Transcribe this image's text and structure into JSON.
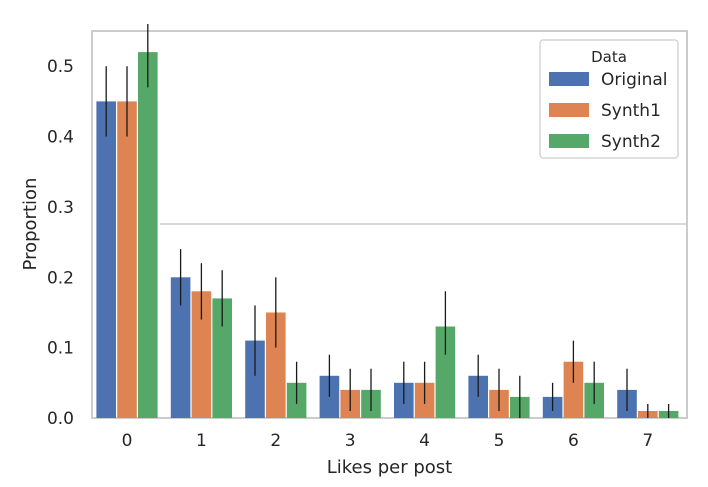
{
  "chart_data": {
    "type": "bar",
    "title": "",
    "xlabel": "Likes per post",
    "ylabel": "Proportion",
    "categories": [
      "0",
      "1",
      "2",
      "3",
      "4",
      "5",
      "6",
      "7"
    ],
    "ylim": [
      0,
      0.55
    ],
    "yticks": [
      "0.0",
      "0.1",
      "0.2",
      "0.3",
      "0.4",
      "0.5"
    ],
    "grid": false,
    "legend": {
      "title": "Data",
      "position": "top-right"
    },
    "series": [
      {
        "name": "Original",
        "color": "#4c72b0",
        "values": [
          0.45,
          0.2,
          0.11,
          0.06,
          0.05,
          0.06,
          0.03,
          0.04
        ],
        "ci_low": [
          0.4,
          0.16,
          0.06,
          0.03,
          0.02,
          0.03,
          0.01,
          0.01
        ],
        "ci_high": [
          0.5,
          0.24,
          0.16,
          0.09,
          0.08,
          0.09,
          0.05,
          0.07
        ]
      },
      {
        "name": "Synth1",
        "color": "#dd8452",
        "values": [
          0.45,
          0.18,
          0.15,
          0.04,
          0.05,
          0.04,
          0.08,
          0.01
        ],
        "ci_low": [
          0.4,
          0.14,
          0.1,
          0.01,
          0.02,
          0.01,
          0.05,
          0.0
        ],
        "ci_high": [
          0.5,
          0.22,
          0.2,
          0.07,
          0.08,
          0.07,
          0.11,
          0.02
        ]
      },
      {
        "name": "Synth2",
        "color": "#55a868",
        "values": [
          0.52,
          0.17,
          0.05,
          0.04,
          0.13,
          0.03,
          0.05,
          0.01
        ],
        "ci_low": [
          0.47,
          0.13,
          0.02,
          0.01,
          0.09,
          0.0,
          0.02,
          0.0
        ],
        "ci_high": [
          0.56,
          0.21,
          0.08,
          0.07,
          0.18,
          0.06,
          0.08,
          0.02
        ]
      }
    ]
  }
}
